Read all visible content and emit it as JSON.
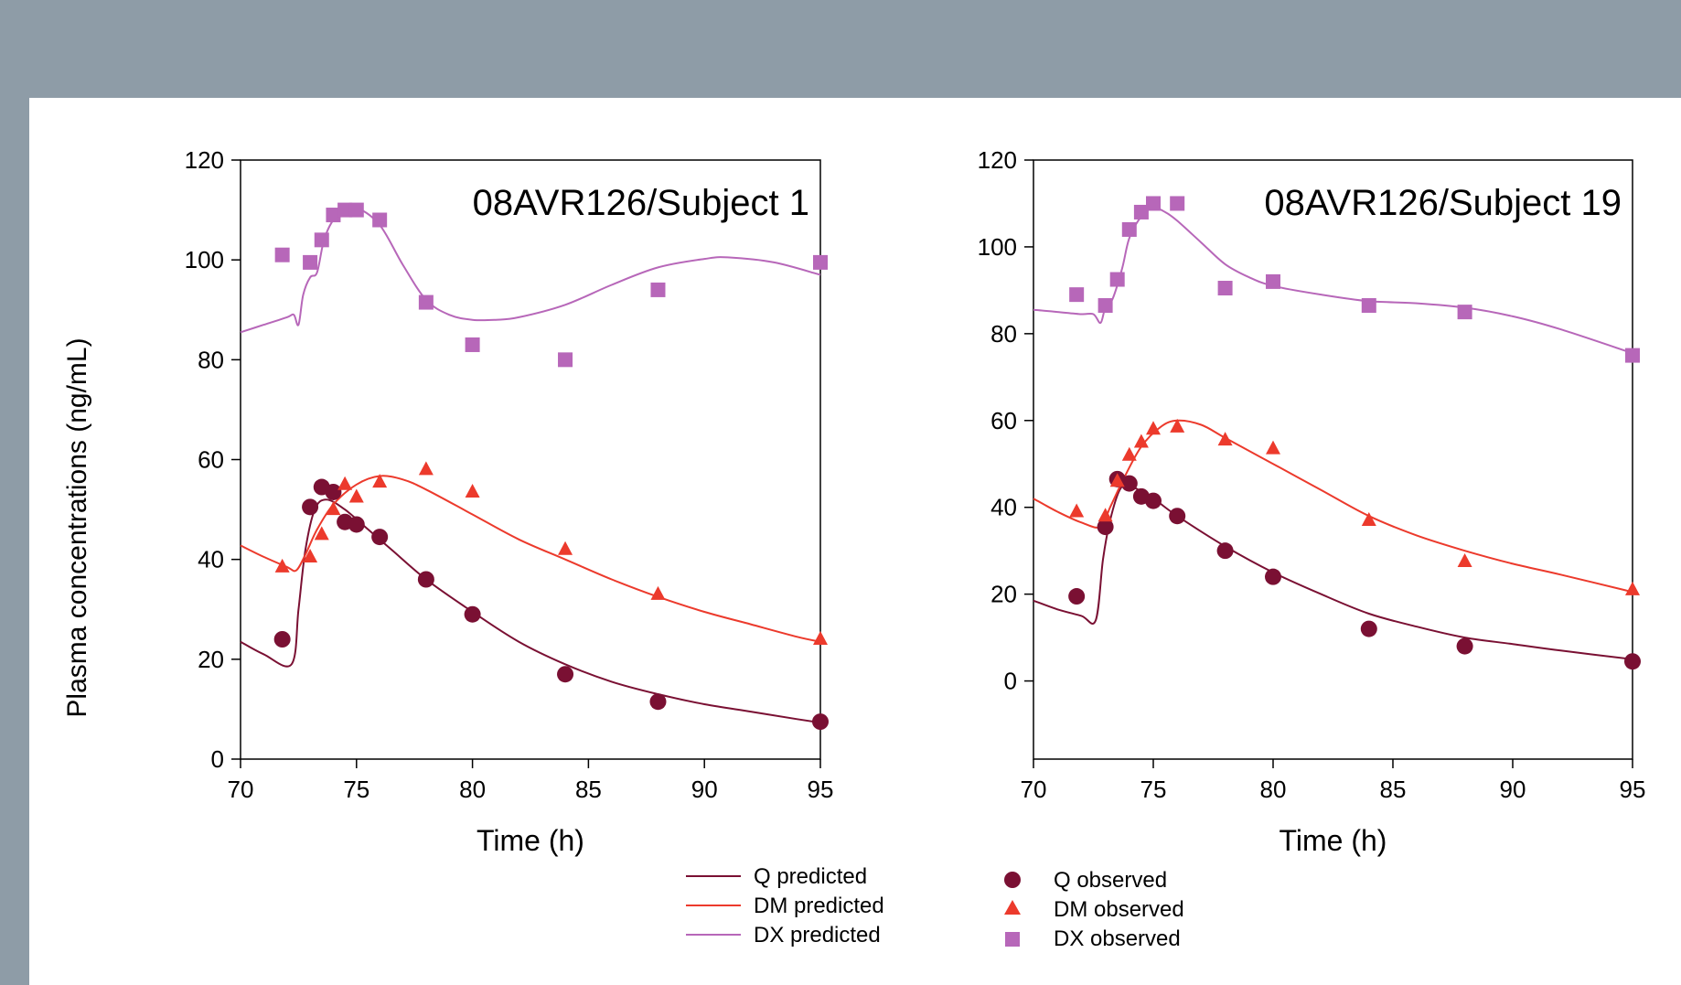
{
  "colors": {
    "q": "#7a1033",
    "dm": "#ec3a2c",
    "dx": "#b767b9",
    "header_bg": "#8e9ca7",
    "panel_bg": "#ffffff"
  },
  "ylabel": "Plasma concentrations (ng/mL)",
  "legend": {
    "q_pred": "Q predicted",
    "dm_pred": "DM predicted",
    "dx_pred": "DX predicted",
    "q_obs": "Q observed",
    "dm_obs": "DM observed",
    "dx_obs": "DX observed"
  },
  "chart_data": [
    {
      "type": "scatter",
      "annotation": "08AVR126/Subject 1",
      "xlabel": "Time (h)",
      "xlim": [
        70,
        95
      ],
      "ylim": [
        0,
        120
      ],
      "x_ticks": [
        70,
        75,
        80,
        85,
        90,
        95
      ],
      "y_ticks": [
        0,
        20,
        40,
        60,
        80,
        100,
        120
      ],
      "observed": {
        "Q": [
          [
            71.8,
            24
          ],
          [
            73,
            50.5
          ],
          [
            73.5,
            54.5
          ],
          [
            74,
            53.5
          ],
          [
            74.5,
            47.5
          ],
          [
            75,
            47
          ],
          [
            76,
            44.5
          ],
          [
            78,
            36
          ],
          [
            80,
            29
          ],
          [
            84,
            17
          ],
          [
            88,
            11.5
          ],
          [
            95,
            7.5
          ]
        ],
        "DM": [
          [
            71.8,
            38.5
          ],
          [
            73,
            40.5
          ],
          [
            73.5,
            45
          ],
          [
            74,
            50
          ],
          [
            74.5,
            55
          ],
          [
            75,
            52.5
          ],
          [
            76,
            55.5
          ],
          [
            78,
            58
          ],
          [
            80,
            53.5
          ],
          [
            84,
            42
          ],
          [
            88,
            33
          ],
          [
            95,
            24
          ]
        ],
        "DX": [
          [
            71.8,
            101
          ],
          [
            73,
            99.5
          ],
          [
            73.5,
            104
          ],
          [
            74,
            109
          ],
          [
            74.5,
            110
          ],
          [
            75,
            110
          ],
          [
            76,
            108
          ],
          [
            78,
            91.5
          ],
          [
            80,
            83
          ],
          [
            84,
            80
          ],
          [
            88,
            94
          ],
          [
            95,
            99.5
          ]
        ]
      },
      "predicted": {
        "Q": [
          [
            70,
            23.5
          ],
          [
            71,
            21
          ],
          [
            72.2,
            19
          ],
          [
            72.5,
            30
          ],
          [
            72.8,
            42
          ],
          [
            73.2,
            50
          ],
          [
            73.7,
            52
          ],
          [
            74.5,
            50
          ],
          [
            75.5,
            46
          ],
          [
            76.5,
            42
          ],
          [
            78,
            36
          ],
          [
            80,
            29.5
          ],
          [
            82,
            23.5
          ],
          [
            84,
            19
          ],
          [
            86,
            15.5
          ],
          [
            88,
            13
          ],
          [
            90,
            11
          ],
          [
            92,
            9.5
          ],
          [
            94,
            8
          ],
          [
            95,
            7.3
          ]
        ],
        "DM": [
          [
            70,
            42.8
          ],
          [
            71,
            40.5
          ],
          [
            72,
            38.5
          ],
          [
            72.4,
            37.8
          ],
          [
            72.8,
            41
          ],
          [
            73.3,
            46
          ],
          [
            74,
            51
          ],
          [
            75,
            55
          ],
          [
            76,
            56.7
          ],
          [
            77,
            56
          ],
          [
            78,
            54
          ],
          [
            80,
            49
          ],
          [
            82,
            44
          ],
          [
            84,
            40
          ],
          [
            86,
            36
          ],
          [
            88,
            32.5
          ],
          [
            90,
            29.5
          ],
          [
            92,
            27
          ],
          [
            94,
            24.5
          ],
          [
            95,
            23.5
          ]
        ],
        "DX": [
          [
            70,
            85.5
          ],
          [
            71,
            87
          ],
          [
            72,
            88.5
          ],
          [
            72.3,
            89
          ],
          [
            72.5,
            87
          ],
          [
            72.7,
            93
          ],
          [
            73,
            96.5
          ],
          [
            73.3,
            97.5
          ],
          [
            73.6,
            104
          ],
          [
            74,
            108
          ],
          [
            74.5,
            110
          ],
          [
            75,
            110.5
          ],
          [
            76,
            107
          ],
          [
            77,
            99
          ],
          [
            78,
            92
          ],
          [
            79,
            89
          ],
          [
            80,
            88
          ],
          [
            81,
            88
          ],
          [
            82,
            88.5
          ],
          [
            84,
            91
          ],
          [
            86,
            95
          ],
          [
            88,
            98.5
          ],
          [
            90,
            100.2
          ],
          [
            91,
            100.5
          ],
          [
            93,
            99.5
          ],
          [
            95,
            97
          ]
        ]
      }
    },
    {
      "type": "scatter",
      "annotation": "08AVR126/Subject 19",
      "xlabel": "Time (h)",
      "xlim": [
        70,
        95
      ],
      "ylim": [
        -18,
        120
      ],
      "x_ticks": [
        70,
        75,
        80,
        85,
        90,
        95
      ],
      "y_ticks": [
        0,
        20,
        40,
        60,
        80,
        100,
        120
      ],
      "observed": {
        "Q": [
          [
            71.8,
            19.5
          ],
          [
            73,
            35.5
          ],
          [
            73.5,
            46.5
          ],
          [
            74,
            45.5
          ],
          [
            74.5,
            42.5
          ],
          [
            75,
            41.5
          ],
          [
            76,
            38
          ],
          [
            78,
            30
          ],
          [
            80,
            24
          ],
          [
            84,
            12
          ],
          [
            88,
            8
          ],
          [
            95,
            4.5
          ]
        ],
        "DM": [
          [
            71.8,
            39
          ],
          [
            73,
            38
          ],
          [
            73.5,
            46
          ],
          [
            74,
            52
          ],
          [
            74.5,
            55
          ],
          [
            75,
            58
          ],
          [
            76,
            58.5
          ],
          [
            78,
            55.5
          ],
          [
            80,
            53.5
          ],
          [
            84,
            37
          ],
          [
            88,
            27.5
          ],
          [
            95,
            21
          ]
        ],
        "DX": [
          [
            71.8,
            89
          ],
          [
            73,
            86.5
          ],
          [
            73.5,
            92.5
          ],
          [
            74,
            104
          ],
          [
            74.5,
            108
          ],
          [
            75,
            110
          ],
          [
            76,
            110
          ],
          [
            78,
            90.5
          ],
          [
            80,
            92
          ],
          [
            84,
            86.5
          ],
          [
            88,
            85
          ],
          [
            95,
            75
          ]
        ]
      },
      "predicted": {
        "Q": [
          [
            70,
            18.5
          ],
          [
            71,
            16.5
          ],
          [
            72,
            15
          ],
          [
            72.6,
            14
          ],
          [
            72.9,
            28
          ],
          [
            73.2,
            37
          ],
          [
            73.6,
            44
          ],
          [
            74,
            45
          ],
          [
            75,
            42
          ],
          [
            76,
            38
          ],
          [
            78,
            31
          ],
          [
            80,
            25
          ],
          [
            82,
            20
          ],
          [
            84,
            15.5
          ],
          [
            86,
            12.5
          ],
          [
            88,
            10
          ],
          [
            90,
            8.5
          ],
          [
            92,
            7
          ],
          [
            95,
            5
          ]
        ],
        "DM": [
          [
            70,
            42
          ],
          [
            71,
            39
          ],
          [
            72,
            36.5
          ],
          [
            72.8,
            35.5
          ],
          [
            73.2,
            40
          ],
          [
            73.8,
            47
          ],
          [
            74.5,
            54
          ],
          [
            75.3,
            58.5
          ],
          [
            76,
            60
          ],
          [
            77,
            59
          ],
          [
            78,
            56
          ],
          [
            80,
            50
          ],
          [
            82,
            44
          ],
          [
            84,
            38
          ],
          [
            86,
            33.5
          ],
          [
            88,
            30
          ],
          [
            90,
            27
          ],
          [
            92,
            24.5
          ],
          [
            95,
            20.5
          ]
        ],
        "DX": [
          [
            70,
            85.5
          ],
          [
            71,
            85
          ],
          [
            72,
            84.5
          ],
          [
            72.5,
            84.5
          ],
          [
            72.8,
            82.5
          ],
          [
            73,
            86
          ],
          [
            73.3,
            88
          ],
          [
            73.7,
            95
          ],
          [
            74,
            102
          ],
          [
            74.5,
            107
          ],
          [
            75,
            109
          ],
          [
            75.5,
            108
          ],
          [
            76,
            106
          ],
          [
            77,
            101
          ],
          [
            78,
            96
          ],
          [
            79,
            93
          ],
          [
            80,
            91
          ],
          [
            82,
            89
          ],
          [
            84,
            87.5
          ],
          [
            86,
            87
          ],
          [
            88,
            86
          ],
          [
            90,
            84
          ],
          [
            92,
            81
          ],
          [
            95,
            75.5
          ]
        ]
      }
    }
  ]
}
